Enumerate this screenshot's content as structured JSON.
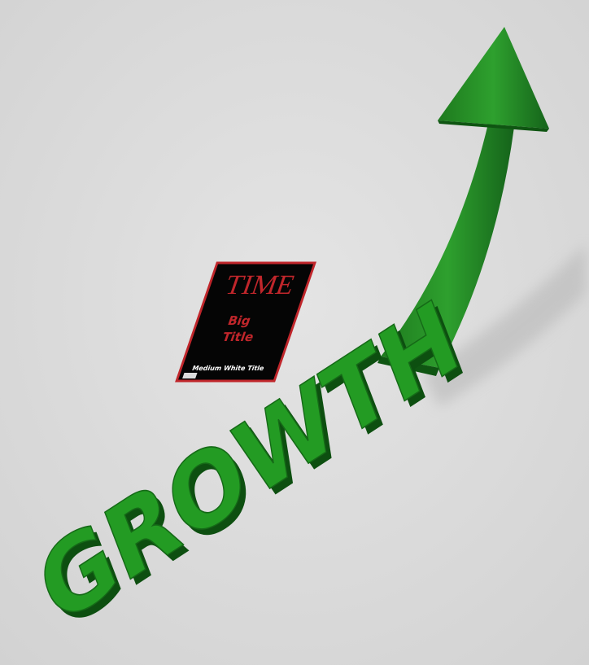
{
  "magazine": {
    "masthead": "TIME",
    "big_title": [
      "Big",
      "Title"
    ],
    "subtitle": "Medium White Title"
  },
  "headline": "GROWTH"
}
